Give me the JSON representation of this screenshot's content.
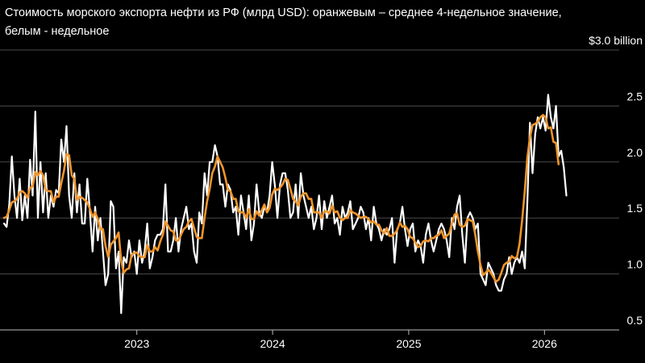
{
  "chart_data": {
    "type": "line",
    "title": "Стоимость морского экспорта нефти из РФ (млрд USD): оранжевым – среднее 4-недельное значение, белым - недельное",
    "y_unit_label": "$3.0 billion",
    "y_ticks": [
      "2.5",
      "2.0",
      "1.5",
      "1.0",
      "0.5"
    ],
    "y_tick_values": [
      2.5,
      2.0,
      1.5,
      1.0,
      0.5
    ],
    "ylim": [
      0.5,
      3.0
    ],
    "x_ticks": [
      "2023",
      "2024",
      "2025",
      "2026"
    ],
    "x_tick_values": [
      "2023-01-01",
      "2024-01-01",
      "2025-01-01",
      "2026-01-01"
    ],
    "grid": "horizontal",
    "colors": {
      "weekly": "#ffffff",
      "avg4w": "#f0952a",
      "grid": "#4a4a4a",
      "background": "#000000"
    },
    "series": [
      {
        "key": "weekly",
        "start_date": "2022-01-09",
        "step_days": 7,
        "values": [
          1.45,
          1.42,
          1.62,
          2.05,
          1.7,
          1.5,
          1.85,
          1.48,
          1.7,
          1.5,
          2.02,
          1.7,
          2.45,
          1.5,
          2.0,
          1.55,
          1.9,
          1.5,
          1.7,
          1.6,
          1.75,
          1.72,
          2.2,
          2.0,
          2.32,
          1.7,
          1.5,
          1.9,
          1.55,
          1.8,
          1.45,
          1.45,
          1.85,
          1.55,
          1.2,
          1.6,
          1.3,
          1.5,
          1.2,
          0.9,
          1.0,
          1.65,
          1.6,
          1.05,
          1.2,
          0.65,
          1.15,
          1.1,
          1.3,
          1.15,
          1.2,
          1.0,
          1.3,
          1.1,
          1.2,
          1.45,
          1.05,
          1.15,
          1.3,
          1.35,
          1.35,
          1.4,
          1.8,
          1.2,
          1.2,
          1.3,
          1.5,
          1.2,
          1.4,
          1.5,
          1.6,
          1.4,
          1.45,
          1.2,
          1.1,
          1.55,
          1.45,
          1.9,
          1.7,
          2.0,
          2.0,
          2.15,
          2.05,
          1.8,
          1.8,
          1.6,
          1.8,
          1.75,
          1.55,
          1.6,
          1.35,
          1.7,
          1.55,
          1.4,
          1.7,
          1.3,
          1.45,
          1.8,
          1.55,
          1.5,
          1.6,
          1.55,
          1.7,
          2.0,
          1.8,
          1.5,
          1.8,
          1.9,
          1.9,
          1.75,
          1.5,
          1.55,
          1.8,
          1.5,
          1.9,
          1.7,
          1.6,
          1.5,
          1.6,
          1.4,
          1.5,
          1.7,
          1.4,
          1.65,
          1.5,
          1.6,
          1.7,
          1.45,
          1.5,
          1.35,
          1.6,
          1.5,
          1.55,
          1.65,
          1.4,
          1.45,
          1.5,
          1.6,
          1.55,
          1.4,
          1.5,
          1.3,
          1.6,
          1.45,
          1.4,
          1.3,
          1.4,
          1.35,
          1.4,
          1.5,
          1.1,
          1.4,
          1.45,
          1.6,
          1.4,
          1.25,
          1.4,
          1.45,
          1.2,
          1.3,
          1.25,
          1.1,
          1.35,
          1.45,
          1.3,
          1.2,
          1.3,
          1.4,
          1.45,
          1.4,
          1.3,
          1.15,
          1.5,
          1.4,
          1.6,
          1.7,
          1.35,
          1.1,
          1.5,
          1.55,
          1.5,
          1.4,
          1.45,
          1.0,
          0.95,
          0.9,
          1.1,
          1.05,
          1.0,
          0.9,
          0.85,
          0.85,
          0.95,
          1.0,
          1.15,
          1.0,
          1.1,
          1.15,
          1.1,
          1.2,
          1.05,
          1.65,
          2.35,
          1.9,
          2.25,
          2.4,
          2.3,
          2.4,
          2.28,
          2.6,
          2.4,
          2.3,
          2.5,
          2.05,
          2.1,
          1.95,
          1.7
        ]
      },
      {
        "key": "avg4w",
        "start_date": "2022-01-09",
        "step_days": 7,
        "values": [
          1.5,
          1.51,
          1.57,
          1.64,
          1.65,
          1.67,
          1.73,
          1.74,
          1.72,
          1.68,
          1.77,
          1.78,
          1.91,
          1.88,
          1.92,
          1.88,
          1.75,
          1.74,
          1.74,
          1.64,
          1.69,
          1.69,
          1.81,
          1.92,
          2.07,
          2.06,
          1.88,
          1.85,
          1.66,
          1.69,
          1.68,
          1.66,
          1.64,
          1.58,
          1.51,
          1.55,
          1.49,
          1.4,
          1.4,
          1.25,
          1.15,
          1.26,
          1.29,
          1.32,
          1.37,
          1.12,
          1.01,
          1.04,
          1.05,
          1.17,
          1.19,
          1.19,
          1.16,
          1.15,
          1.15,
          1.26,
          1.2,
          1.2,
          1.24,
          1.21,
          1.29,
          1.35,
          1.47,
          1.43,
          1.39,
          1.38,
          1.3,
          1.3,
          1.35,
          1.4,
          1.42,
          1.47,
          1.49,
          1.41,
          1.33,
          1.32,
          1.32,
          1.5,
          1.65,
          1.76,
          1.9,
          1.96,
          2.05,
          2.0,
          1.95,
          1.86,
          1.75,
          1.74,
          1.67,
          1.67,
          1.56,
          1.55,
          1.55,
          1.5,
          1.58,
          1.49,
          1.49,
          1.56,
          1.52,
          1.57,
          1.62,
          1.55,
          1.59,
          1.71,
          1.76,
          1.75,
          1.77,
          1.8,
          1.85,
          1.84,
          1.76,
          1.67,
          1.65,
          1.61,
          1.69,
          1.72,
          1.72,
          1.67,
          1.67,
          1.55,
          1.55,
          1.55,
          1.5,
          1.56,
          1.56,
          1.54,
          1.61,
          1.55,
          1.56,
          1.5,
          1.48,
          1.5,
          1.5,
          1.57,
          1.55,
          1.54,
          1.52,
          1.5,
          1.51,
          1.51,
          1.49,
          1.46,
          1.47,
          1.44,
          1.44,
          1.39,
          1.36,
          1.41,
          1.34,
          1.34,
          1.36,
          1.39,
          1.46,
          1.42,
          1.43,
          1.4,
          1.33,
          1.32,
          1.28,
          1.24,
          1.25,
          1.29,
          1.3,
          1.29,
          1.32,
          1.32,
          1.34,
          1.35,
          1.39,
          1.32,
          1.34,
          1.36,
          1.45,
          1.53,
          1.54,
          1.44,
          1.42,
          1.43,
          1.49,
          1.48,
          1.47,
          1.35,
          1.2,
          1.08,
          0.99,
          1.01,
          1.04,
          1.01,
          0.97,
          0.93,
          0.95,
          1.01,
          1.08,
          1.1,
          1.11,
          1.16,
          1.14,
          1.15,
          1.27,
          1.48,
          1.74,
          2.04,
          2.22,
          2.33,
          2.34,
          2.36,
          2.4,
          2.42,
          2.4,
          2.3,
          2.31,
          2.18,
          2.17,
          1.98
        ]
      }
    ]
  }
}
